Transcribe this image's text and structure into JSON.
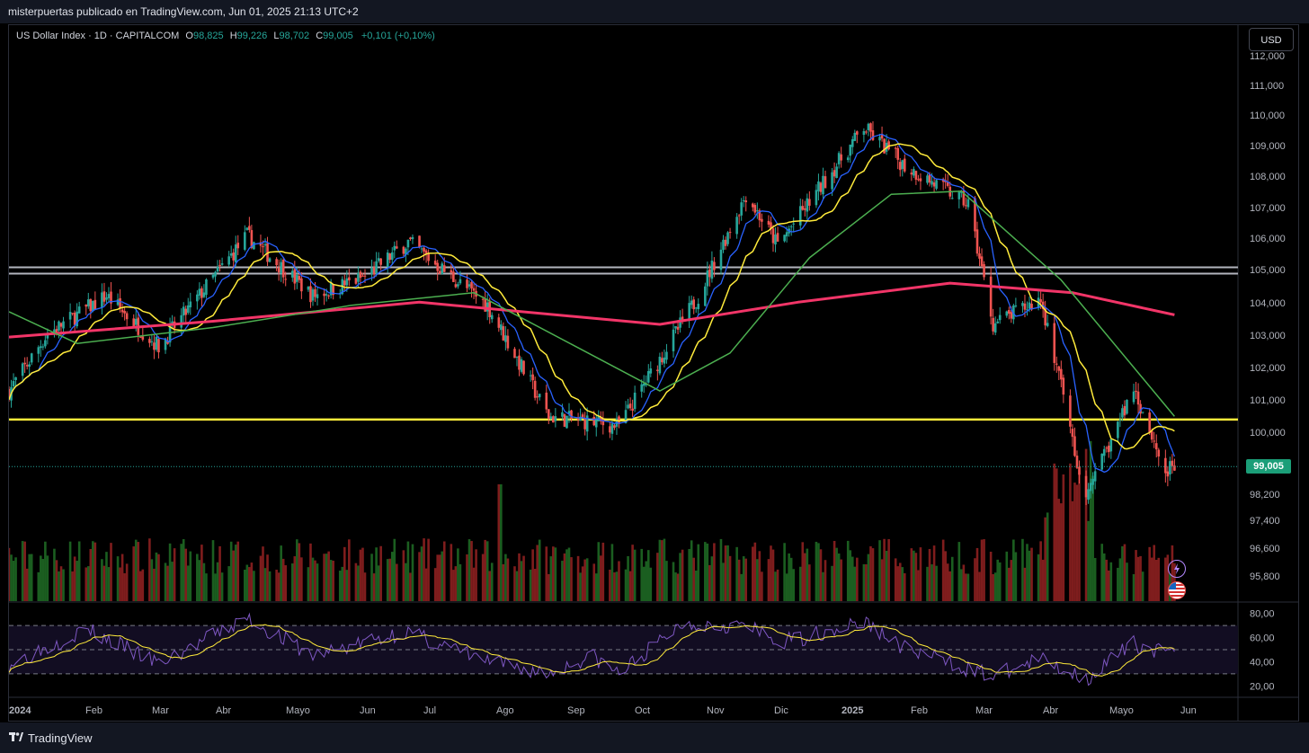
{
  "header": {
    "publish_text": "misterpuertas publicado en TradingView.com, Jun 01, 2025 21:13 UTC+2"
  },
  "legend": {
    "symbol": "US Dollar Index · 1D · CAPITALCOM",
    "open_label": "O",
    "open": "98,825",
    "high_label": "H",
    "high": "99,226",
    "low_label": "L",
    "low": "98,702",
    "close_label": "C",
    "close": "99,005",
    "change": "+0,101 (+0,10%)"
  },
  "currency_button": "USD",
  "current_price_label": "99,005",
  "footer": {
    "brand": "TradingView"
  },
  "colors": {
    "up": "#26a69a",
    "down": "#ef5350",
    "ma_blue": "#2962ff",
    "ma_yellow": "#ffeb3b",
    "ma_green": "#4caf50",
    "ma_pink": "#f23568",
    "hline_yellow": "#ffeb3b",
    "hline_grey": "#b2b5be",
    "rsi": "#7e57c2",
    "rsi_ma": "#ffeb3b"
  },
  "chart_data": {
    "type": "candlestick",
    "title": "US Dollar Index · 1D · CAPITALCOM",
    "x_ticks": [
      "2024",
      "Feb",
      "Mar",
      "Abr",
      "Mayo",
      "Jun",
      "Jul",
      "Ago",
      "Sep",
      "Oct",
      "Nov",
      "Dic",
      "2025",
      "Feb",
      "Mar",
      "Abr",
      "Mayo",
      "Jun"
    ],
    "price_ticks": [
      "112,000",
      "111,000",
      "110,000",
      "109,000",
      "108,000",
      "107,000",
      "106,000",
      "105,000",
      "104,000",
      "103,000",
      "102,000",
      "101,000",
      "100,000",
      "98,200",
      "97,400",
      "96,600",
      "95,800"
    ],
    "price_range": [
      95.5,
      112.0
    ],
    "close_path": [
      {
        "x": "2024-01-02",
        "y": 101.3
      },
      {
        "x": "2024-01-19",
        "y": 103.1
      },
      {
        "x": "2024-02-14",
        "y": 104.3
      },
      {
        "x": "2024-03-08",
        "y": 102.7
      },
      {
        "x": "2024-04-16",
        "y": 106.2
      },
      {
        "x": "2024-05-15",
        "y": 104.3
      },
      {
        "x": "2024-06-07",
        "y": 104.9
      },
      {
        "x": "2024-06-26",
        "y": 106.0
      },
      {
        "x": "2024-07-31",
        "y": 104.0
      },
      {
        "x": "2024-08-27",
        "y": 100.5
      },
      {
        "x": "2024-09-27",
        "y": 100.2
      },
      {
        "x": "2024-11-01",
        "y": 104.3
      },
      {
        "x": "2024-11-22",
        "y": 107.5
      },
      {
        "x": "2024-12-06",
        "y": 105.9
      },
      {
        "x": "2025-01-13",
        "y": 109.6
      },
      {
        "x": "2025-01-31",
        "y": 108.4
      },
      {
        "x": "2025-02-28",
        "y": 107.2
      },
      {
        "x": "2025-03-11",
        "y": 103.4
      },
      {
        "x": "2025-04-01",
        "y": 104.2
      },
      {
        "x": "2025-04-21",
        "y": 98.0
      },
      {
        "x": "2025-05-12",
        "y": 101.4
      },
      {
        "x": "2025-05-26",
        "y": 98.8
      },
      {
        "x": "2025-05-30",
        "y": 99.005
      }
    ],
    "series": [
      {
        "name": "MA 200",
        "color": "#f23568",
        "values": [
          {
            "x": "2024-01-02",
            "y": 103.0
          },
          {
            "x": "2024-04-01",
            "y": 103.5
          },
          {
            "x": "2024-07-01",
            "y": 104.1
          },
          {
            "x": "2024-10-15",
            "y": 103.4
          },
          {
            "x": "2024-12-15",
            "y": 104.1
          },
          {
            "x": "2025-02-20",
            "y": 104.7
          },
          {
            "x": "2025-04-15",
            "y": 104.4
          },
          {
            "x": "2025-05-30",
            "y": 103.7
          }
        ]
      },
      {
        "name": "MA 50",
        "color": "#4caf50",
        "values": [
          {
            "x": "2024-01-02",
            "y": 103.8
          },
          {
            "x": "2024-02-01",
            "y": 102.8
          },
          {
            "x": "2024-04-01",
            "y": 103.3
          },
          {
            "x": "2024-06-01",
            "y": 104.0
          },
          {
            "x": "2024-07-25",
            "y": 104.4
          },
          {
            "x": "2024-10-15",
            "y": 101.3
          },
          {
            "x": "2024-11-15",
            "y": 102.5
          },
          {
            "x": "2024-12-20",
            "y": 105.5
          },
          {
            "x": "2025-01-25",
            "y": 107.5
          },
          {
            "x": "2025-02-25",
            "y": 107.6
          },
          {
            "x": "2025-04-10",
            "y": 104.8
          },
          {
            "x": "2025-05-30",
            "y": 100.5
          }
        ]
      }
    ],
    "horizontal_levels": [
      {
        "value": 100.4,
        "color": "#ffeb3b"
      },
      {
        "value": 105.2,
        "color": "#b2b5be"
      },
      {
        "value": 105.0,
        "color": "#b2b5be"
      }
    ],
    "volume_last": 1,
    "rsi": {
      "ticks": [
        "80,00",
        "60,00",
        "40,00",
        "20,00"
      ],
      "range": [
        18,
        82
      ],
      "bands": [
        70,
        50,
        30
      ],
      "path": [
        {
          "x": "2024-01-02",
          "y": 38
        },
        {
          "x": "2024-02-05",
          "y": 67
        },
        {
          "x": "2024-03-08",
          "y": 38
        },
        {
          "x": "2024-04-16",
          "y": 76
        },
        {
          "x": "2024-05-15",
          "y": 45
        },
        {
          "x": "2024-06-25",
          "y": 65
        },
        {
          "x": "2024-07-31",
          "y": 40
        },
        {
          "x": "2024-08-27",
          "y": 30
        },
        {
          "x": "2024-09-15",
          "y": 45
        },
        {
          "x": "2024-09-27",
          "y": 30
        },
        {
          "x": "2024-10-25",
          "y": 72
        },
        {
          "x": "2024-11-22",
          "y": 70
        },
        {
          "x": "2024-12-06",
          "y": 55
        },
        {
          "x": "2025-01-13",
          "y": 73
        },
        {
          "x": "2025-02-01",
          "y": 50
        },
        {
          "x": "2025-03-11",
          "y": 28
        },
        {
          "x": "2025-04-01",
          "y": 42
        },
        {
          "x": "2025-04-21",
          "y": 26
        },
        {
          "x": "2025-05-12",
          "y": 55
        },
        {
          "x": "2025-05-30",
          "y": 45
        }
      ]
    }
  }
}
